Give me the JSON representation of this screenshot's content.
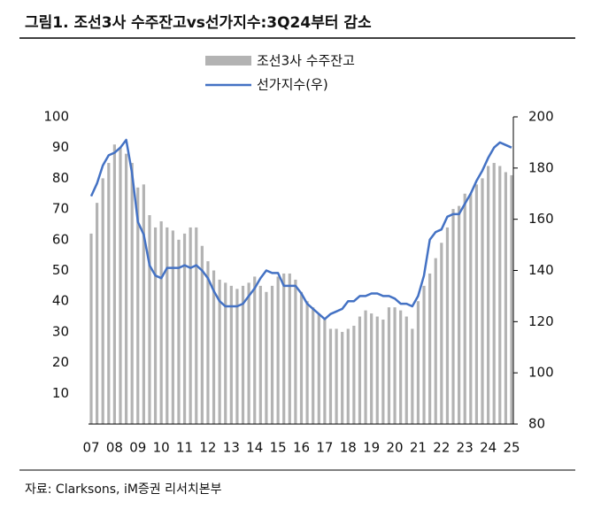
{
  "chart_data": {
    "type": "bar_line",
    "title": "그림1.   조선3사 수주잔고vs선가지수:3Q24부터 감소",
    "source": "자료: Clarksons, iM증권 리서치본부",
    "categories": [
      "07",
      null,
      null,
      null,
      "08",
      null,
      null,
      null,
      "09",
      null,
      null,
      null,
      "10",
      null,
      null,
      null,
      "11",
      null,
      null,
      null,
      "12",
      null,
      null,
      null,
      "13",
      null,
      null,
      null,
      "14",
      null,
      null,
      null,
      "15",
      null,
      null,
      null,
      "16",
      null,
      null,
      null,
      "17",
      null,
      null,
      null,
      "18",
      null,
      null,
      null,
      "19",
      null,
      null,
      null,
      "20",
      null,
      null,
      null,
      "21",
      null,
      null,
      null,
      "22",
      null,
      null,
      null,
      "23",
      null,
      null,
      null,
      "24",
      null,
      null,
      null,
      "25"
    ],
    "series": [
      {
        "name": "조선3사 수주잔고",
        "color": "#b3b3b3",
        "axis": "y",
        "values": [
          62,
          72,
          80,
          85,
          91,
          90,
          88,
          85,
          77,
          78,
          68,
          64,
          66,
          64,
          63,
          60,
          62,
          64,
          64,
          58,
          53,
          50,
          47,
          46,
          45,
          44,
          45,
          46,
          48,
          45,
          43,
          45,
          48,
          49,
          49,
          47,
          43,
          40,
          38,
          36,
          34,
          31,
          31,
          30,
          31,
          32,
          35,
          37,
          36,
          35,
          34,
          38,
          38,
          37,
          35,
          31,
          40,
          45,
          49,
          54,
          59,
          64,
          70,
          71,
          75,
          75,
          78,
          80,
          84,
          85,
          84,
          82,
          81
        ]
      },
      {
        "name": "선가지수(우)",
        "color": "#4472c4",
        "axis": "y2",
        "values": [
          169,
          174,
          181,
          185,
          186,
          188,
          191,
          178,
          159,
          154,
          142,
          138,
          137,
          141,
          141,
          141,
          142,
          141,
          142,
          140,
          137,
          132,
          128,
          126,
          126,
          126,
          127,
          130,
          133,
          137,
          140,
          139,
          139,
          134,
          134,
          134,
          131,
          127,
          125,
          123,
          121,
          123,
          124,
          125,
          128,
          128,
          130,
          130,
          131,
          131,
          130,
          130,
          129,
          127,
          127,
          126,
          130,
          138,
          152,
          155,
          156,
          161,
          162,
          162,
          166,
          170,
          175,
          179,
          184,
          188,
          190,
          189,
          188
        ]
      }
    ],
    "ylim": [
      0,
      100
    ],
    "yticks": [
      10,
      20,
      30,
      40,
      50,
      60,
      70,
      80,
      90,
      100
    ],
    "y2lim": [
      80,
      200
    ],
    "y2ticks": [
      80,
      100,
      120,
      140,
      160,
      180,
      200
    ]
  }
}
